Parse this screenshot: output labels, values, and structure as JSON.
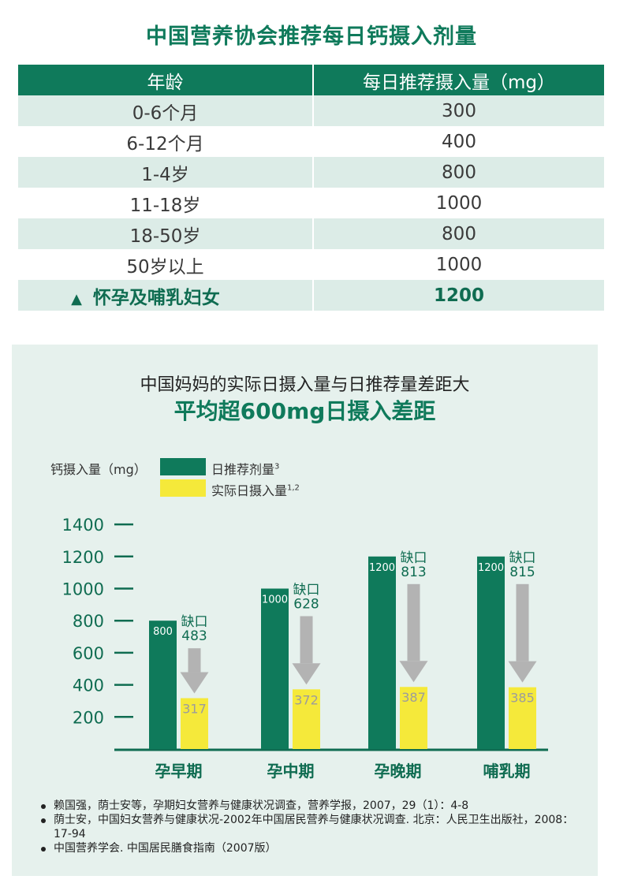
{
  "title": "中国营养协会推荐每日钙摄入剂量",
  "table": {
    "headers": [
      "年龄",
      "每日推荐摄入量（mg）"
    ],
    "rows": [
      {
        "age": "0-6个月",
        "value": "300"
      },
      {
        "age": "6-12个月",
        "value": "400"
      },
      {
        "age": "1-4岁",
        "value": "800"
      },
      {
        "age": "11-18岁",
        "value": "1000"
      },
      {
        "age": "18-50岁",
        "value": "800"
      },
      {
        "age": "50岁以上",
        "value": "1000"
      }
    ],
    "highlight": {
      "marker": "▲",
      "age": "怀孕及哺乳妇女",
      "value": "1200"
    }
  },
  "chart_section": {
    "subtitle": "中国妈妈的实际日摄入量与日推荐量差距大",
    "headline": "平均超600mg日摄入差距"
  },
  "chart_data": {
    "type": "bar",
    "ylabel": "钙摄入量（mg）",
    "categories": [
      "孕早期",
      "孕中期",
      "孕晚期",
      "哺乳期"
    ],
    "series": [
      {
        "name": "日推荐剂量",
        "name_sup": "3",
        "color": "#0f7a5b",
        "values": [
          800,
          1000,
          1200,
          1200
        ]
      },
      {
        "name": "实际日摄入量",
        "name_sup": "1,2",
        "color": "#f5e93a",
        "values": [
          317,
          372,
          387,
          385
        ]
      }
    ],
    "gap_label": "缺口",
    "gaps": [
      483,
      628,
      813,
      815
    ],
    "yticks": [
      200,
      400,
      600,
      800,
      1000,
      1200,
      1400
    ],
    "ylim": [
      0,
      1400
    ]
  },
  "references": [
    "赖国强，荫士安等，孕期妇女营养与健康状况调查，营养学报，2007，29（1）：4-8",
    "荫士安，中国妇女营养与健康状况-2002年中国居民营养与健康状况调查. 北京：人民卫生出版社，2008：17-94",
    "中国营养学会. 中国居民膳食指南（2007版）"
  ]
}
